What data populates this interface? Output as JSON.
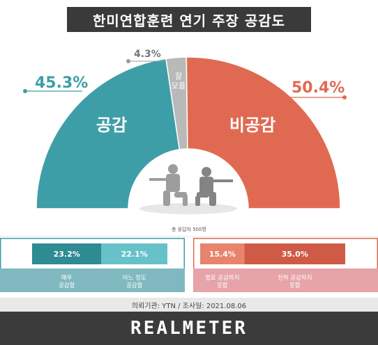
{
  "chart_data": [
    {
      "type": "pie",
      "title": "한미연합훈련 연기 주장 공감도",
      "slices": [
        {
          "label": "공감",
          "value": 45.3,
          "display": "45.3%",
          "color": "#3e9ea7"
        },
        {
          "label": "잘 모름",
          "value": 4.3,
          "display": "4.3%",
          "color": "#b9b9b9"
        },
        {
          "label": "비공감",
          "value": 50.4,
          "display": "50.4%",
          "color": "#e06a51"
        }
      ],
      "note": "총 응답자 500명"
    },
    {
      "type": "bar",
      "group": "공감",
      "categories": [
        "매우 공감함",
        "어느 정도 공감함"
      ],
      "values": [
        23.2,
        22.1
      ],
      "displays": [
        "23.2%",
        "22.1%"
      ],
      "colors": [
        "#2e8a93",
        "#66c2c8"
      ]
    },
    {
      "type": "bar",
      "group": "비공감",
      "categories": [
        "별로 공감하지 못함",
        "전혀 공감하지 못함"
      ],
      "values": [
        15.4,
        35.0
      ],
      "displays": [
        "15.4%",
        "35.0%"
      ],
      "colors": [
        "#e8836d",
        "#cf5a45"
      ]
    }
  ],
  "footer": {
    "source": "의뢰기관: YTN  /  조사일: 2021.08.06",
    "brand": "REALMETER"
  },
  "colors": {
    "teal_band": "#7fb9bf",
    "pink_band": "#e6a3a8",
    "title_bg": "#3a3a3a"
  }
}
